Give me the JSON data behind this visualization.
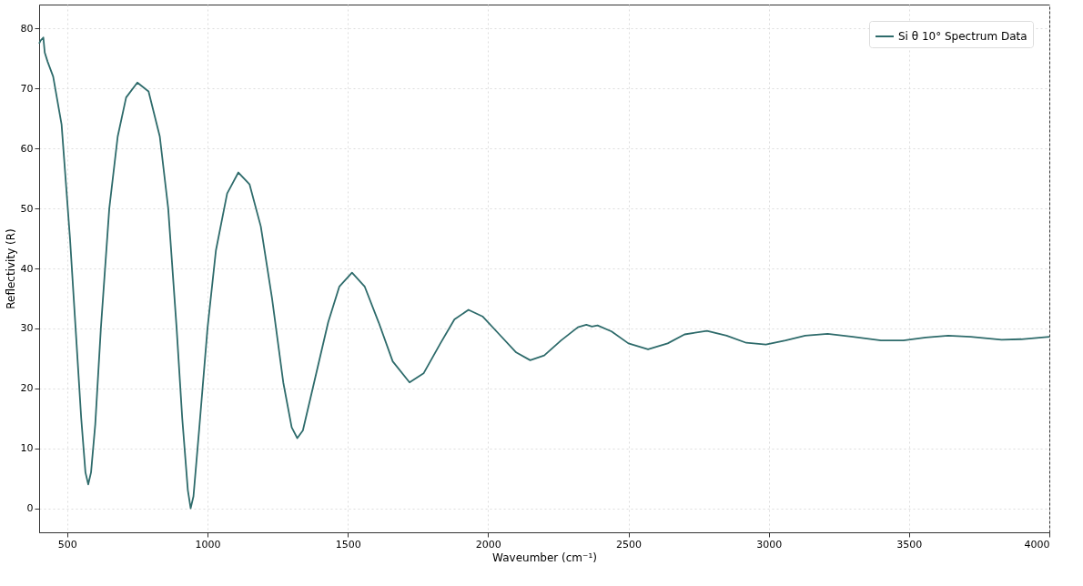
{
  "chart_data": {
    "type": "line",
    "xlabel": "Waveumber (cm⁻¹)",
    "ylabel": "Reflectivity (R)",
    "xlim": [
      400,
      4000
    ],
    "ylim": [
      -4,
      84
    ],
    "xticks": [
      500,
      1000,
      1500,
      2000,
      2500,
      3000,
      3500,
      4000
    ],
    "yticks": [
      0,
      10,
      20,
      30,
      40,
      50,
      60,
      70,
      80
    ],
    "grid": true,
    "legend": "top right",
    "line_style": "solid",
    "marker": "none",
    "series": [
      {
        "name": "Si θ 10° Spectrum Data",
        "color": "#2e6b6b",
        "x": [
          400,
          405,
          415,
          420,
          430,
          450,
          480,
          510,
          530,
          550,
          565,
          575,
          585,
          600,
          620,
          650,
          680,
          710,
          750,
          790,
          830,
          860,
          890,
          910,
          930,
          940,
          950,
          970,
          1000,
          1030,
          1070,
          1110,
          1150,
          1190,
          1230,
          1270,
          1300,
          1320,
          1340,
          1380,
          1430,
          1470,
          1515,
          1560,
          1610,
          1660,
          1720,
          1770,
          1830,
          1880,
          1930,
          1980,
          2040,
          2100,
          2150,
          2200,
          2260,
          2320,
          2350,
          2370,
          2390,
          2440,
          2500,
          2570,
          2640,
          2700,
          2780,
          2850,
          2920,
          2990,
          3060,
          3130,
          3210,
          3300,
          3400,
          3480,
          3560,
          3640,
          3720,
          3830,
          3900,
          4000
        ],
        "values": [
          77.5,
          78,
          78.5,
          76,
          74.5,
          72,
          64,
          45,
          30,
          15,
          6,
          4,
          6,
          14,
          30,
          50,
          62,
          68.5,
          71,
          69.5,
          62,
          50,
          30,
          15,
          3,
          0,
          2,
          13,
          30,
          43,
          52.5,
          56,
          54,
          47,
          35,
          21,
          13.5,
          11.7,
          13,
          21,
          31,
          37,
          39.3,
          37,
          31,
          24.5,
          21,
          22.5,
          27.5,
          31.5,
          33.1,
          32,
          29,
          26,
          24.7,
          25.5,
          28,
          30.2,
          30.6,
          30.3,
          30.5,
          29.5,
          27.5,
          26.5,
          27.5,
          29,
          29.6,
          28.8,
          27.6,
          27.3,
          28,
          28.8,
          29.1,
          28.6,
          28,
          28,
          28.5,
          28.8,
          28.6,
          28.1,
          28.2,
          28.6
        ]
      }
    ]
  }
}
